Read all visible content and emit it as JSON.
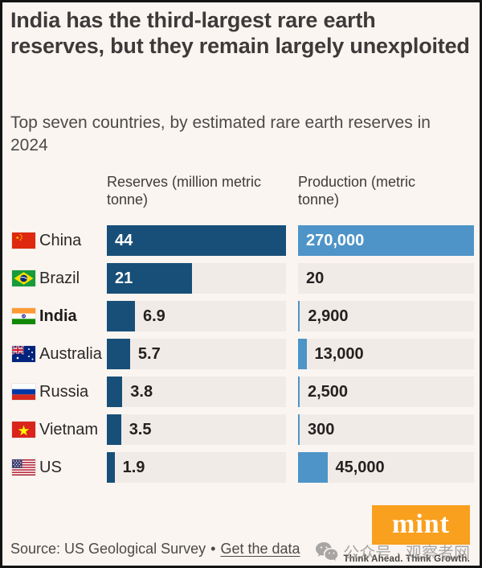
{
  "title": "India has the third-largest rare earth reserves, but they remain largely unexploited",
  "subtitle": "Top seven countries, by estimated rare earth reserves in 2024",
  "columns": {
    "reserves_header": "Reserves (million metric tonne)",
    "production_header": "Production (metric tonne)"
  },
  "chart_data": {
    "type": "bar",
    "orientation": "horizontal",
    "title": "India has the third-largest rare earth reserves, but they remain largely unexploited",
    "subtitle": "Top seven countries, by estimated rare earth reserves in 2024",
    "categories": [
      "China",
      "Brazil",
      "India",
      "Australia",
      "Russia",
      "Vietnam",
      "US"
    ],
    "series": [
      {
        "name": "Reserves (million metric tonne)",
        "values": [
          44,
          21,
          6.9,
          5.7,
          3.8,
          3.5,
          1.9
        ],
        "axis_max": 44,
        "bar_color": "#174f78"
      },
      {
        "name": "Production (metric tonne)",
        "values": [
          270000,
          20,
          2900,
          13000,
          2500,
          300,
          45000
        ],
        "axis_max": 270000,
        "bar_color": "#4e94c8"
      }
    ],
    "value_labels": {
      "reserves": [
        "44",
        "21",
        "6.9",
        "5.7",
        "3.8",
        "3.5",
        "1.9"
      ],
      "production": [
        "270,000",
        "20",
        "2,900",
        "13,000",
        "2,500",
        "300",
        "45,000"
      ]
    },
    "highlighted_category": "India",
    "grid": false,
    "legend_position": "none"
  },
  "rows": [
    {
      "country": "China",
      "flag": "china",
      "bold": false,
      "reserves": 44,
      "reserves_label": "44",
      "production": 270000,
      "production_label": "270,000"
    },
    {
      "country": "Brazil",
      "flag": "brazil",
      "bold": false,
      "reserves": 21,
      "reserves_label": "21",
      "production": 20,
      "production_label": "20"
    },
    {
      "country": "India",
      "flag": "india",
      "bold": true,
      "reserves": 6.9,
      "reserves_label": "6.9",
      "production": 2900,
      "production_label": "2,900"
    },
    {
      "country": "Australia",
      "flag": "australia",
      "bold": false,
      "reserves": 5.7,
      "reserves_label": "5.7",
      "production": 13000,
      "production_label": "13,000"
    },
    {
      "country": "Russia",
      "flag": "russia",
      "bold": false,
      "reserves": 3.8,
      "reserves_label": "3.8",
      "production": 2500,
      "production_label": "2,500"
    },
    {
      "country": "Vietnam",
      "flag": "vietnam",
      "bold": false,
      "reserves": 3.5,
      "reserves_label": "3.5",
      "production": 300,
      "production_label": "300"
    },
    {
      "country": "US",
      "flag": "us",
      "bold": false,
      "reserves": 1.9,
      "reserves_label": "1.9",
      "production": 45000,
      "production_label": "45,000"
    }
  ],
  "footer": {
    "source": "Source: US Geological Survey",
    "separator": "•",
    "link_label": "Get the data",
    "logo_text": "mint",
    "tagline": "Think Ahead. Think Growth."
  },
  "watermark": {
    "icon": "wechat-icon",
    "text": "公众号 · 观察者网"
  },
  "colors": {
    "background": "#faf5f1",
    "track": "#f1ebe8",
    "reserves_bar": "#174f78",
    "production_bar": "#4e94c8",
    "title_text": "#3d3a39",
    "value_text": "#242120",
    "logo_orange": "#f9a01e"
  }
}
